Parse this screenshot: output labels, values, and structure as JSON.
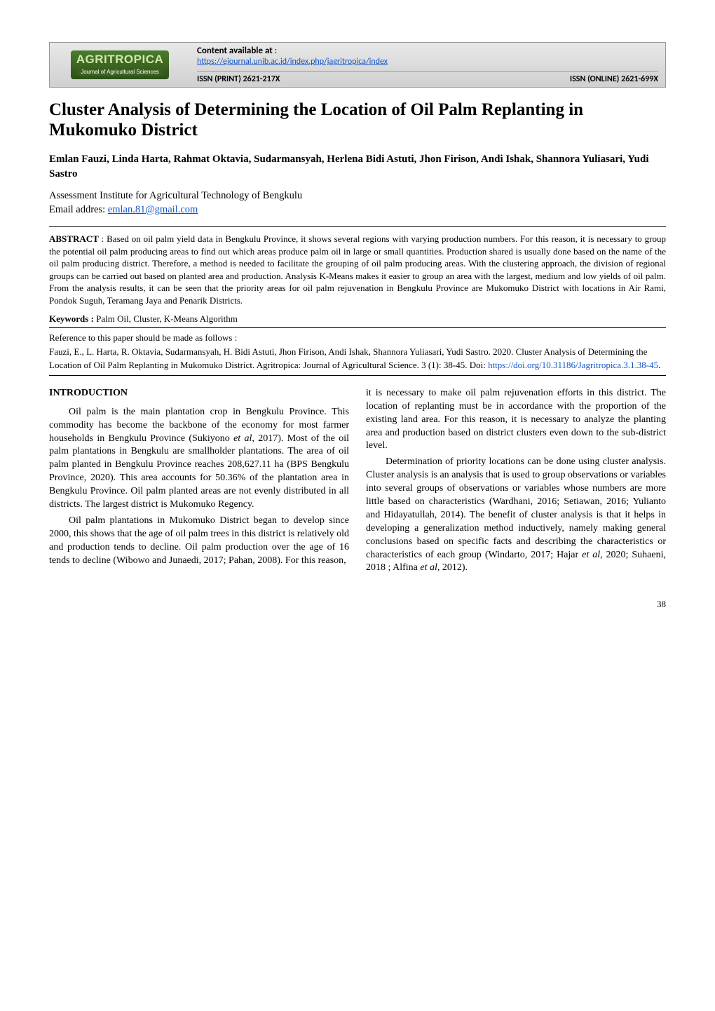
{
  "header": {
    "logoMain": "AGRITROPICA",
    "logoSub": "Journal of Agricultural Sciences",
    "contentAvailable": "Content available at",
    "url": "https://ejournal.unib.ac.id/index.php/jagritropica/index",
    "issnPrint": "ISSN (PRINT) 2621-217X",
    "issnOnline": "ISSN (ONLINE) 2621-699X"
  },
  "title": "Cluster Analysis of Determining the Location of Oil Palm Replanting in Mukomuko District",
  "authors": "Emlan Fauzi, Linda Harta, Rahmat Oktavia, Sudarmansyah, Herlena Bidi Astuti, Jhon Firison, Andi Ishak, Shannora Yuliasari, Yudi Sastro",
  "affiliation": {
    "line1": "Assessment Institute for Agricultural Technology of Bengkulu",
    "line2": "Email addres: ",
    "email": "emlan.81@gmail.com"
  },
  "abstract": {
    "label": "ABSTRACT",
    "text": " : Based on oil palm yield data in Bengkulu Province, it shows several regions with varying production numbers. For this reason, it is necessary to group the potential oil palm producing areas to find out which areas produce palm oil in large or small quantities. Production shared is usually done based on the name of the oil palm producing district. Therefore, a method is needed to facilitate the grouping of oil palm producing areas. With the clustering approach, the division of regional groups can be carried out based on planted area and production. Analysis K-Means makes it easier to group an area with the largest, medium and low yields of oil palm. From the analysis results, it can be seen that the priority areas for oil palm rejuvenation in Bengkulu Province are Mukomuko District with locations in Air Rami, Pondok Suguh, Teramang Jaya and Penarik Districts."
  },
  "keywords": {
    "label": "Keywords :",
    "text": " Palm Oil, Cluster, K-Means Algorithm"
  },
  "reference": {
    "intro": "Reference to this paper should be made as follows :",
    "citation": "Fauzi, E., L. Harta, R. Oktavia, Sudarmansyah, H. Bidi Astuti, Jhon Firison, Andi Ishak, Shannora Yuliasari, Yudi Sastro. 2020. Cluster Analysis of Determining the Location of Oil Palm Replanting in Mukomuko District. Agritropica: Journal of Agricultural Science. 3 (1): 38-45. Doi: ",
    "doi": "https://doi.org/10.31186/Jagritropica.3.1.38-45"
  },
  "body": {
    "introHeading": "INTRODUCTION",
    "leftP1": "Oil palm is the main plantation crop in Bengkulu Province. This commodity has become the backbone of the economy for most farmer households in Bengkulu Province (Sukiyono et al, 2017). Most of the oil palm plantations in Bengkulu are smallholder plantations. The area of oil palm planted in Bengkulu Province reaches 208,627.11 ha (BPS Bengkulu Province, 2020). This area accounts for 50.36% of the plantation area in Bengkulu Province. Oil palm planted areas are not evenly distributed in all districts. The largest district is Mukomuko Regency.",
    "leftP2": "Oil palm plantations in Mukomuko District began to develop since 2000, this shows that the age of oil palm trees in this district is relatively old and production tends to decline. Oil palm production over the age of 16 tends to decline (Wibowo and Junaedi, 2017; Pahan, 2008). For this reason,",
    "rightP1": "it is necessary to make oil palm rejuvenation efforts in this district. The location of replanting must be in accordance with the proportion of the existing land area. For this reason, it is necessary to analyze the planting area and production based on district clusters even down to the sub-district level.",
    "rightP2": "Determination of priority locations can be done using cluster analysis. Cluster analysis is an analysis that is used to group observations or variables into several groups of observations or variables whose numbers are  more little based on characteristics (Wardhani, 2016; Setiawan, 2016; Yulianto and Hidayatullah, 2014). The benefit of cluster analysis is that it helps in developing a generalization method inductively, namely making general conclusions based on specific facts and describing the characteristics or characteristics of each group (Windarto, 2017; Hajar et al, 2020; Suhaeni, 2018 ; Alfina et al, 2012)."
  },
  "pageNumber": "38"
}
